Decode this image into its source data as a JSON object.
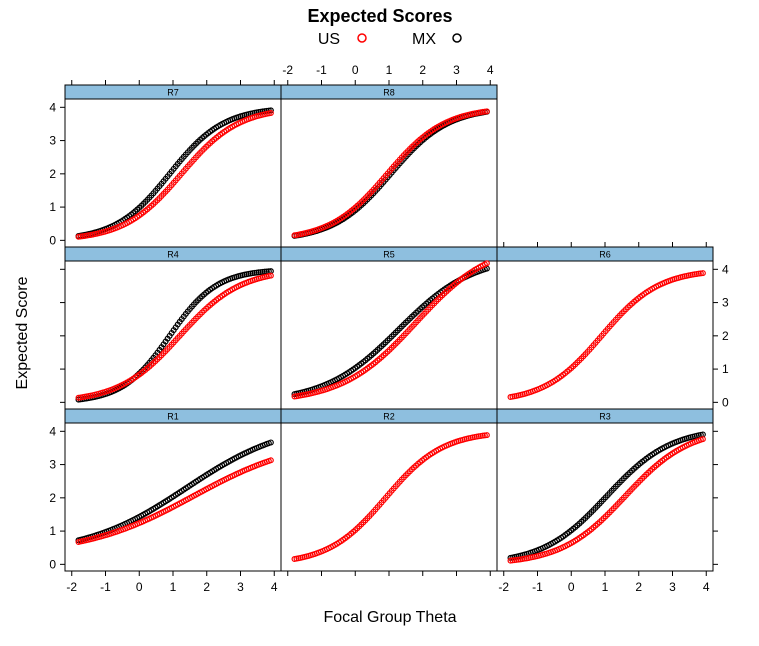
{
  "chart_data": {
    "type": "scatter",
    "title": "Expected Scores",
    "xlabel": "Focal Group Theta",
    "ylabel": "Expected Score",
    "xlim": [
      -2.2,
      4.2
    ],
    "ylim": [
      -0.2,
      4.25
    ],
    "x_ticks": [
      "-2",
      "-1",
      "0",
      "1",
      "2",
      "3",
      "4"
    ],
    "y_ticks": [
      "0",
      "1",
      "2",
      "3",
      "4"
    ],
    "legend_placement": "top",
    "series": [
      {
        "name": "US",
        "color": "#ff0000",
        "marker": "open-circle"
      },
      {
        "name": "MX",
        "color": "#000000",
        "marker": "open-circle"
      }
    ],
    "panels": [
      {
        "name": "R1",
        "row": 0,
        "col": 0,
        "range": [
          -1.8,
          3.9
        ],
        "curves": [
          {
            "series": "MX",
            "min": 0.3,
            "max": 4.3,
            "loc": 1.4,
            "scale": 1.5
          },
          {
            "series": "US",
            "min": 0.3,
            "max": 3.8,
            "loc": 1.6,
            "scale": 1.6
          }
        ]
      },
      {
        "name": "R2",
        "row": 0,
        "col": 1,
        "range": [
          -1.8,
          3.9
        ],
        "curves": [
          {
            "series": "US",
            "min": 0,
            "max": 4,
            "loc": 0.9,
            "scale": 0.85
          }
        ]
      },
      {
        "name": "R3",
        "row": 0,
        "col": 2,
        "range": [
          -1.8,
          3.9
        ],
        "curves": [
          {
            "series": "MX",
            "min": 0,
            "max": 4.1,
            "loc": 1.05,
            "scale": 0.95
          },
          {
            "series": "US",
            "min": 0,
            "max": 4.1,
            "loc": 1.6,
            "scale": 0.95
          }
        ]
      },
      {
        "name": "R4",
        "row": 1,
        "col": 0,
        "range": [
          -1.8,
          3.9
        ],
        "curves": [
          {
            "series": "MX",
            "min": 0,
            "max": 4,
            "loc": 0.9,
            "scale": 0.7
          },
          {
            "series": "US",
            "min": 0,
            "max": 4,
            "loc": 1.2,
            "scale": 0.9
          }
        ]
      },
      {
        "name": "R5",
        "row": 1,
        "col": 1,
        "range": [
          -1.8,
          3.9
        ],
        "curves": [
          {
            "series": "MX",
            "min": 0,
            "max": 4.4,
            "loc": 1.3,
            "scale": 1.1
          },
          {
            "series": "US",
            "min": 0,
            "max": 4.8,
            "loc": 1.8,
            "scale": 1.1
          }
        ]
      },
      {
        "name": "R6",
        "row": 1,
        "col": 2,
        "range": [
          -1.8,
          3.9
        ],
        "curves": [
          {
            "series": "US",
            "min": 0,
            "max": 4,
            "loc": 0.9,
            "scale": 0.85
          }
        ]
      },
      {
        "name": "R7",
        "row": 2,
        "col": 0,
        "range": [
          -1.8,
          3.9
        ],
        "curves": [
          {
            "series": "MX",
            "min": 0,
            "max": 4,
            "loc": 0.9,
            "scale": 0.8
          },
          {
            "series": "US",
            "min": 0,
            "max": 4,
            "loc": 1.25,
            "scale": 0.85
          }
        ]
      },
      {
        "name": "R8",
        "row": 2,
        "col": 1,
        "range": [
          -1.8,
          3.9
        ],
        "curves": [
          {
            "series": "MX",
            "min": 0,
            "max": 4,
            "loc": 1.05,
            "scale": 0.85
          },
          {
            "series": "US",
            "min": 0,
            "max": 4,
            "loc": 0.95,
            "scale": 0.85
          }
        ]
      }
    ]
  }
}
